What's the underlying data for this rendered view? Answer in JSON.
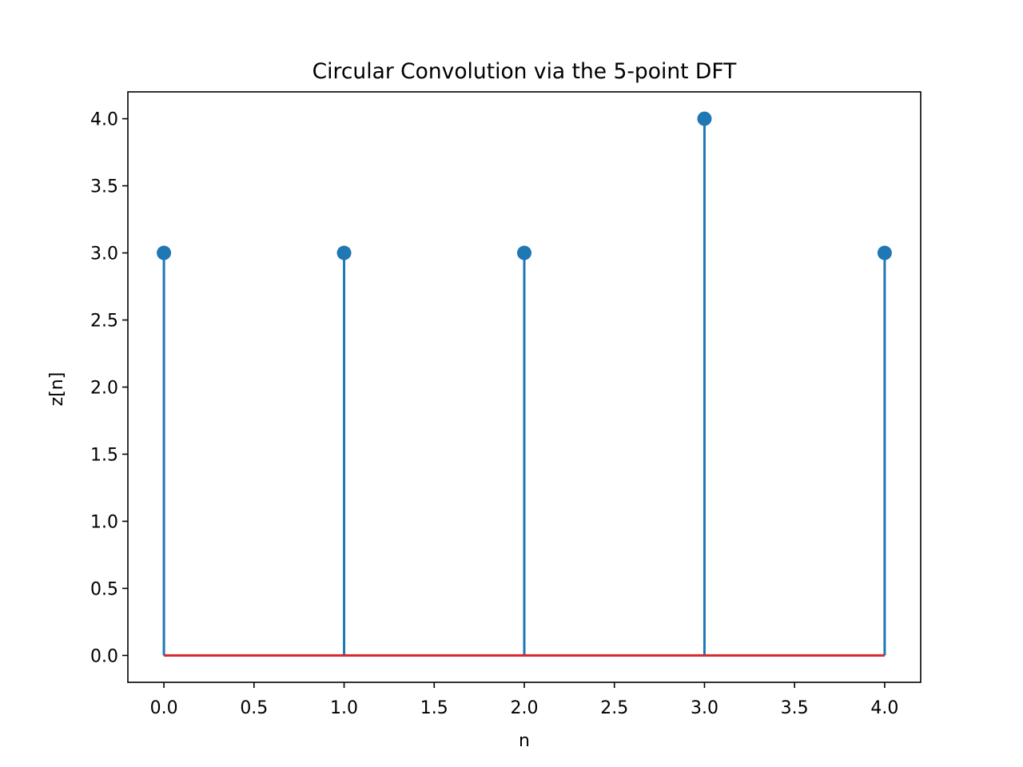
{
  "chart_data": {
    "type": "stem",
    "title": "Circular Convolution via the 5-point DFT",
    "xlabel": "n",
    "ylabel": "z[n]",
    "x": [
      0,
      1,
      2,
      3,
      4
    ],
    "y": [
      3,
      3,
      3,
      4,
      3
    ],
    "xlim": [
      -0.2,
      4.2
    ],
    "ylim": [
      -0.2,
      4.2
    ],
    "xticks": [
      0.0,
      0.5,
      1.0,
      1.5,
      2.0,
      2.5,
      3.0,
      3.5,
      4.0
    ],
    "xtick_labels": [
      "0.0",
      "0.5",
      "1.0",
      "1.5",
      "2.0",
      "2.5",
      "3.0",
      "3.5",
      "4.0"
    ],
    "yticks": [
      0.0,
      0.5,
      1.0,
      1.5,
      2.0,
      2.5,
      3.0,
      3.5,
      4.0
    ],
    "ytick_labels": [
      "0.0",
      "0.5",
      "1.0",
      "1.5",
      "2.0",
      "2.5",
      "3.0",
      "3.5",
      "4.0"
    ],
    "grid": false,
    "colors": {
      "stem": "#1f77b4",
      "marker": "#1f77b4",
      "baseline": "#d62728",
      "frame": "#000000"
    }
  }
}
